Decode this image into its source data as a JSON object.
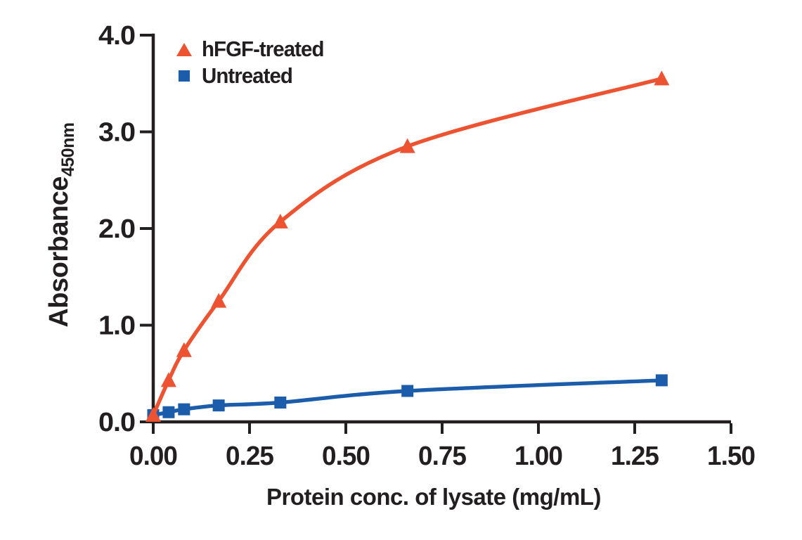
{
  "figure": {
    "background_color": "#ffffff",
    "text_color": "#231f20",
    "axis_color": "#231f20"
  },
  "legend": {
    "position": "top-left-inside",
    "items": [
      {
        "label": "hFGF-treated",
        "marker": "triangle",
        "color": "#ed5330"
      },
      {
        "label": "Untreated",
        "marker": "square",
        "color": "#1c5dab"
      }
    ]
  },
  "chart_data": {
    "type": "line",
    "title": "",
    "xlabel": "Protein conc. of lysate (mg/mL)",
    "ylabel": "Absorbance",
    "ylabel_subscript": "450nm",
    "xlim": [
      0,
      1.5
    ],
    "ylim": [
      0,
      4
    ],
    "x_ticks": [
      0,
      0.25,
      0.5,
      0.75,
      1.0,
      1.25,
      1.5
    ],
    "x_tick_labels": [
      "0.00",
      "0.25",
      "0.50",
      "0.75",
      "1.00",
      "1.25",
      "1.50"
    ],
    "y_ticks": [
      0,
      1,
      2,
      3,
      4
    ],
    "y_tick_labels": [
      "0.0",
      "1.0",
      "2.0",
      "3.0",
      "4.0"
    ],
    "grid": false,
    "legend_position": "upper left",
    "series": [
      {
        "name": "hFGF-treated",
        "marker": "triangle",
        "color": "#ed5330",
        "x": [
          0,
          0.04,
          0.08,
          0.17,
          0.33,
          0.66,
          1.32
        ],
        "y": [
          0.07,
          0.43,
          0.74,
          1.25,
          2.07,
          2.85,
          3.55
        ]
      },
      {
        "name": "Untreated",
        "marker": "square",
        "color": "#1c5dab",
        "x": [
          0,
          0.04,
          0.08,
          0.17,
          0.33,
          0.66,
          1.32
        ],
        "y": [
          0.07,
          0.1,
          0.13,
          0.17,
          0.2,
          0.32,
          0.43
        ]
      }
    ]
  }
}
